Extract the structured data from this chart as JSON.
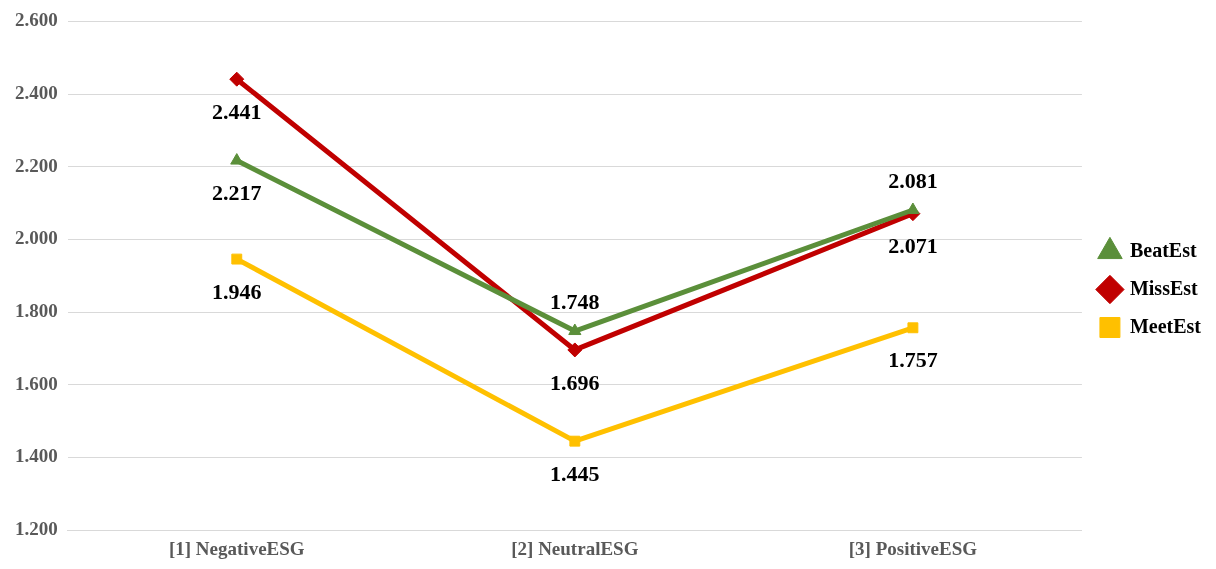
{
  "chart_data": {
    "type": "line",
    "categories": [
      "[1] NegativeESG",
      "[2] NeutralESG",
      "[3] PositiveESG"
    ],
    "series": [
      {
        "name": "BeatEst",
        "color": "#5b8f3a",
        "marker": "triangle",
        "values": [
          2.217,
          1.748,
          2.081
        ]
      },
      {
        "name": "MissEst",
        "color": "#c00000",
        "marker": "diamond",
        "values": [
          2.441,
          1.696,
          2.071
        ]
      },
      {
        "name": "MeetEst",
        "color": "#ffc000",
        "marker": "square",
        "values": [
          1.946,
          1.445,
          1.757
        ]
      }
    ],
    "ylim": [
      1.2,
      2.6
    ],
    "yticks": [
      {
        "value": 1.2,
        "label": "1.200"
      },
      {
        "value": 1.4,
        "label": "1.400"
      },
      {
        "value": 1.6,
        "label": "1.600"
      },
      {
        "value": 1.8,
        "label": "1.800"
      },
      {
        "value": 2.0,
        "label": "2.000"
      },
      {
        "value": 2.2,
        "label": "2.200"
      },
      {
        "value": 2.4,
        "label": "2.400"
      },
      {
        "value": 2.6,
        "label": "2.600"
      }
    ],
    "grid": "y",
    "legend": "right",
    "data_labels": true,
    "line_style": "solid"
  }
}
